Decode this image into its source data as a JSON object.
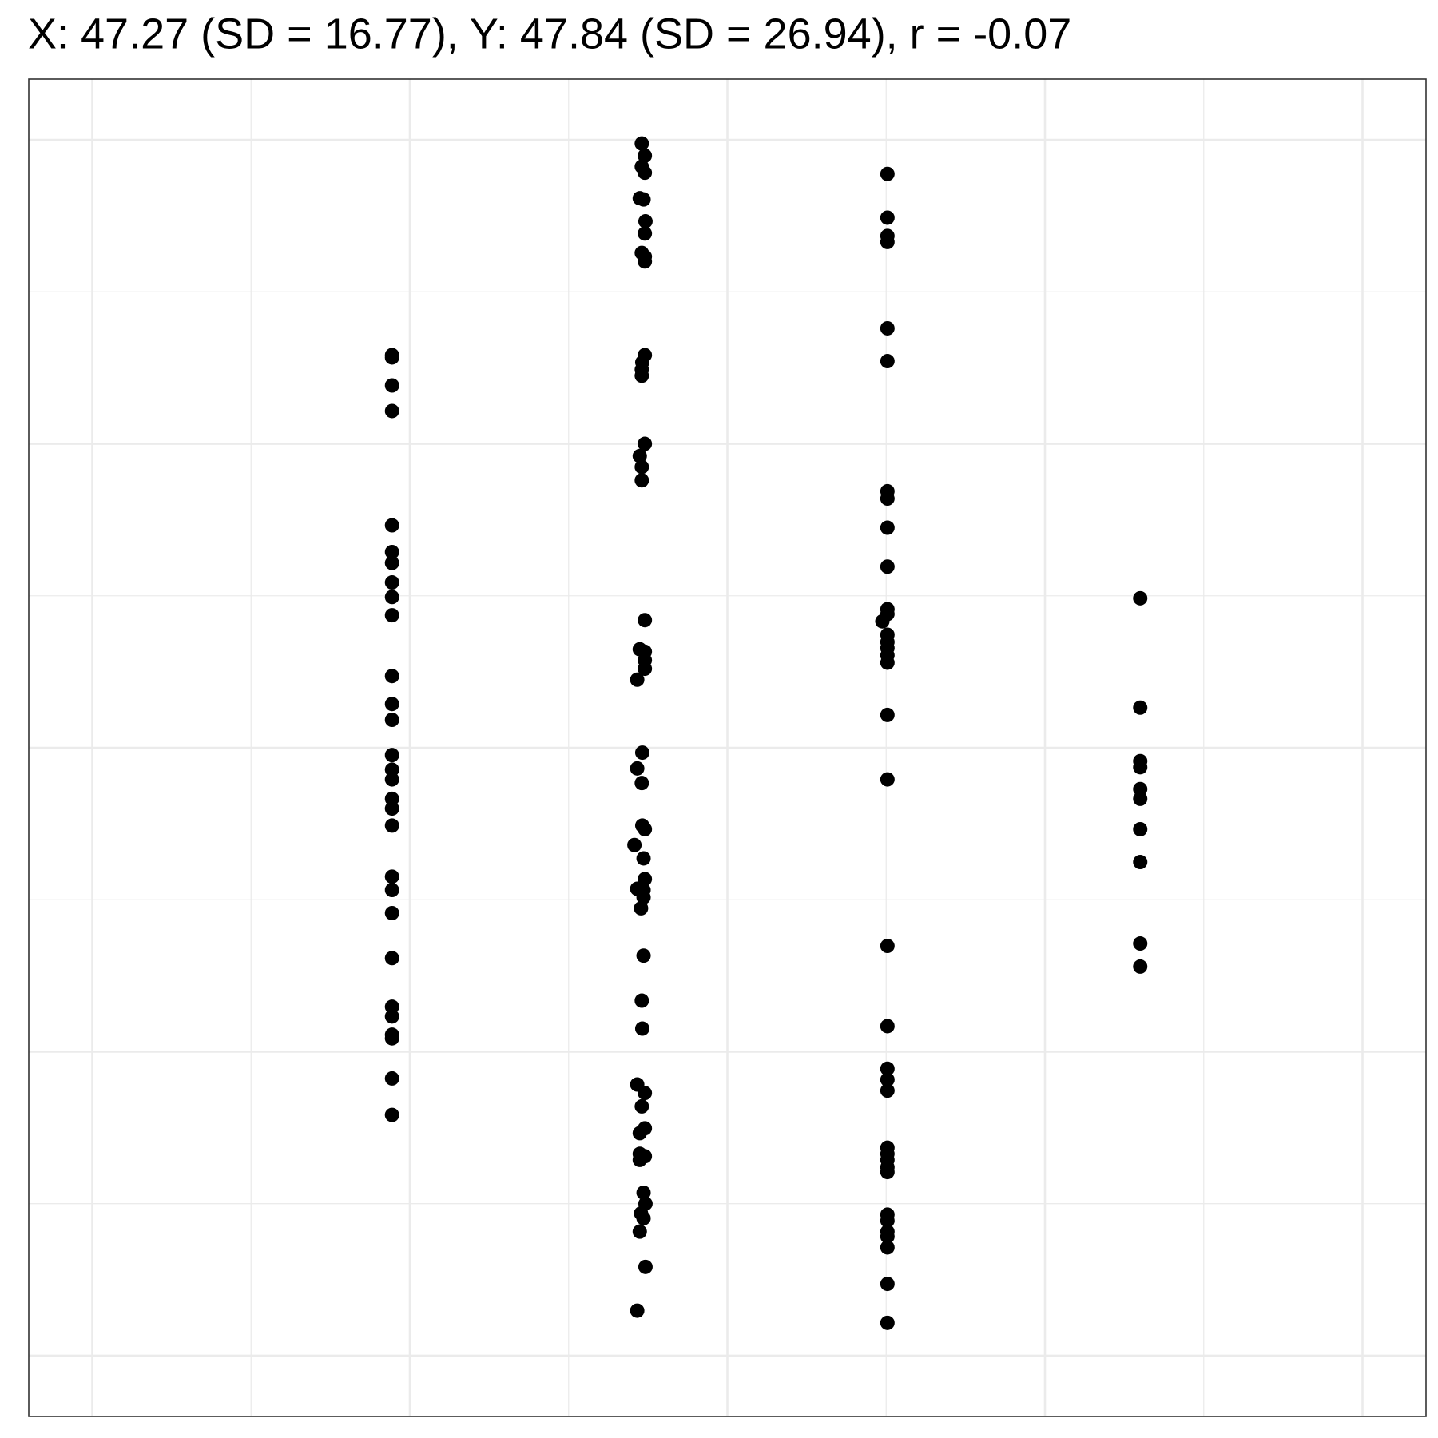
{
  "chart_data": {
    "type": "scatter",
    "title": "X: 47.27 (SD = 16.77), Y: 47.84 (SD = 26.94), r = -0.07",
    "x": [
      23.6,
      23.6,
      23.6,
      23.6,
      23.6,
      23.6,
      23.6,
      23.6,
      23.6,
      23.6,
      23.6,
      23.6,
      23.6,
      23.6,
      23.6,
      23.6,
      23.6,
      23.6,
      23.6,
      23.6,
      23.6,
      23.6,
      23.6,
      23.6,
      23.6,
      23.6,
      23.6,
      23.6,
      23.6,
      43.26,
      43.5,
      43.26,
      43.5,
      43.1,
      43.4,
      43.55,
      43.5,
      43.26,
      43.5,
      43.5,
      43.5,
      43.3,
      43.26,
      43.26,
      43.5,
      43.1,
      43.26,
      43.26,
      43.5,
      43.1,
      43.5,
      43.5,
      43.5,
      42.9,
      43.3,
      42.9,
      43.26,
      43.3,
      43.5,
      42.68,
      43.4,
      43.5,
      42.9,
      43.4,
      43.4,
      43.2,
      43.4,
      43.26,
      43.3,
      42.9,
      43.5,
      43.26,
      43.5,
      43.1,
      43.1,
      43.5,
      43.1,
      43.4,
      43.55,
      43.2,
      43.4,
      43.1,
      43.55,
      42.9,
      62.6,
      62.6,
      62.6,
      62.6,
      62.6,
      62.6,
      62.6,
      62.6,
      62.6,
      62.6,
      62.6,
      62.6,
      62.2,
      62.6,
      62.6,
      62.6,
      62.6,
      62.6,
      62.6,
      62.6,
      62.6,
      62.6,
      62.6,
      62.6,
      62.6,
      62.6,
      62.6,
      62.6,
      62.6,
      62.6,
      62.6,
      62.6,
      62.6,
      62.6,
      62.6,
      62.6,
      62.6,
      82.5,
      82.5,
      82.5,
      82.5,
      82.5,
      82.5,
      82.5,
      82.5,
      82.5,
      82.5
    ],
    "values": [
      82.3,
      82.1,
      79.8,
      77.7,
      68.3,
      66.1,
      65.2,
      63.6,
      62.4,
      60.9,
      55.9,
      53.6,
      52.3,
      49.4,
      48.2,
      47.4,
      45.8,
      45.0,
      43.6,
      39.4,
      38.3,
      36.4,
      32.7,
      28.7,
      27.9,
      26.4,
      26.1,
      22.8,
      19.8,
      99.7,
      98.7,
      97.8,
      97.3,
      95.2,
      95.1,
      93.3,
      92.3,
      90.7,
      90.4,
      90.0,
      82.3,
      81.7,
      81.1,
      80.6,
      75.0,
      74.0,
      73.1,
      72.0,
      60.5,
      58.1,
      57.9,
      57.2,
      56.5,
      55.6,
      49.6,
      48.3,
      47.1,
      43.6,
      43.3,
      42.0,
      40.9,
      39.2,
      38.4,
      38.3,
      37.7,
      36.8,
      32.9,
      29.2,
      26.9,
      22.3,
      21.6,
      20.5,
      18.7,
      18.3,
      16.6,
      16.4,
      16.1,
      13.4,
      12.5,
      11.7,
      11.3,
      10.2,
      7.3,
      3.7,
      97.2,
      93.6,
      92.1,
      91.6,
      84.5,
      81.8,
      71.1,
      70.5,
      68.1,
      64.9,
      61.4,
      61.0,
      60.4,
      59.3,
      58.7,
      58.2,
      57.6,
      57.0,
      52.7,
      47.4,
      33.7,
      27.1,
      23.6,
      22.7,
      21.8,
      17.1,
      16.6,
      16.1,
      15.5,
      15.1,
      11.6,
      11.1,
      10.2,
      9.8,
      8.9,
      5.9,
      2.7,
      62.3,
      53.3,
      48.9,
      48.4,
      46.6,
      45.8,
      43.3,
      40.6,
      33.9,
      32.0
    ],
    "color": "#000000",
    "xlim": [
      -5,
      105
    ],
    "ylim": [
      -5,
      105
    ],
    "xticks": [
      0,
      25,
      50,
      75,
      100
    ],
    "yticks": [
      0,
      25,
      50,
      75,
      100
    ],
    "grid": true
  }
}
